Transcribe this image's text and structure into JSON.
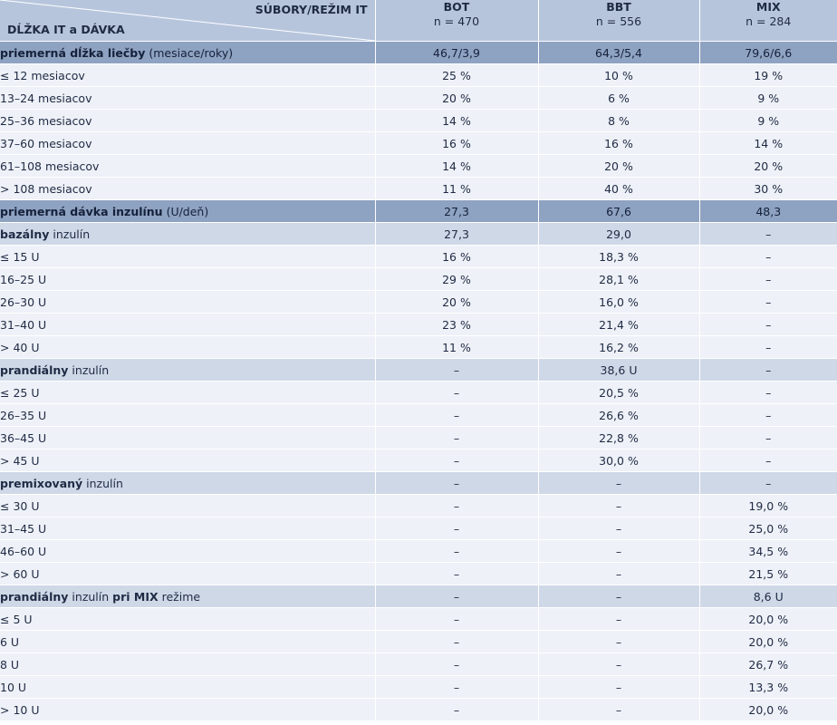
{
  "header": {
    "corner_top": "SÚBORY/REŽIM IT",
    "corner_bottom": "DĹŽKA IT a DÁVKA",
    "columns": [
      {
        "name": "BOT",
        "n": "n = 470"
      },
      {
        "name": "BBT",
        "n": "n = 556"
      },
      {
        "name": "MIX",
        "n": "n = 284"
      }
    ]
  },
  "colors": {
    "header_bg": "#b7c5dc",
    "main_section": "#8ea2c2",
    "sub_section": "#cfd8e7",
    "row_bg": "#eef1f7"
  },
  "rows": [
    {
      "type": "m",
      "label": [
        {
          "t": "priemerná dĺžka liečby",
          "b": true
        },
        {
          "t": " (mesiace/roky)",
          "b": false
        }
      ],
      "values": [
        "46,7/3,9",
        "64,3/5,4",
        "79,6/6,6"
      ]
    },
    {
      "type": "l",
      "label": [
        {
          "t": "≤ 12 mesiacov",
          "b": false
        }
      ],
      "values": [
        "25 %",
        "10 %",
        "19 %"
      ]
    },
    {
      "type": "l",
      "label": [
        {
          "t": "13–24 mesiacov",
          "b": false
        }
      ],
      "values": [
        "20 %",
        "6 %",
        "9 %"
      ]
    },
    {
      "type": "l",
      "label": [
        {
          "t": "25–36 mesiacov",
          "b": false
        }
      ],
      "values": [
        "14 %",
        "8 %",
        "9 %"
      ]
    },
    {
      "type": "l",
      "label": [
        {
          "t": "37–60 mesiacov",
          "b": false
        }
      ],
      "values": [
        "16 %",
        "16 %",
        "14 %"
      ]
    },
    {
      "type": "l",
      "label": [
        {
          "t": "61–108 mesiacov",
          "b": false
        }
      ],
      "values": [
        "14 %",
        "20 %",
        "20 %"
      ]
    },
    {
      "type": "l",
      "label": [
        {
          "t": "> 108 mesiacov",
          "b": false
        }
      ],
      "values": [
        "11 %",
        "40 %",
        "30 %"
      ]
    },
    {
      "type": "m",
      "label": [
        {
          "t": "priemerná dávka inzulínu",
          "b": true
        },
        {
          "t": " (U/deň)",
          "b": false
        }
      ],
      "values": [
        "27,3",
        "67,6",
        "48,3"
      ]
    },
    {
      "type": "s",
      "label": [
        {
          "t": "bazálny",
          "b": true
        },
        {
          "t": " inzulín",
          "b": false
        }
      ],
      "values": [
        "27,3",
        "29,0",
        "–"
      ]
    },
    {
      "type": "l",
      "label": [
        {
          "t": "≤ 15 U",
          "b": false
        }
      ],
      "values": [
        "16 %",
        "18,3 %",
        "–"
      ]
    },
    {
      "type": "l",
      "label": [
        {
          "t": "16–25 U",
          "b": false
        }
      ],
      "values": [
        "29 %",
        "28,1 %",
        "–"
      ]
    },
    {
      "type": "l",
      "label": [
        {
          "t": "26–30 U",
          "b": false
        }
      ],
      "values": [
        "20 %",
        "16,0 %",
        "–"
      ]
    },
    {
      "type": "l",
      "label": [
        {
          "t": "31–40 U",
          "b": false
        }
      ],
      "values": [
        "23 %",
        "21,4 %",
        "–"
      ]
    },
    {
      "type": "l",
      "label": [
        {
          "t": "> 40 U",
          "b": false
        }
      ],
      "values": [
        "11 %",
        "16,2 %",
        "–"
      ]
    },
    {
      "type": "s",
      "label": [
        {
          "t": "prandiálny",
          "b": true
        },
        {
          "t": " inzulín",
          "b": false
        }
      ],
      "values": [
        "–",
        "38,6 U",
        "–"
      ]
    },
    {
      "type": "l",
      "label": [
        {
          "t": "≤ 25 U",
          "b": false
        }
      ],
      "values": [
        "–",
        "20,5 %",
        "–"
      ]
    },
    {
      "type": "l",
      "label": [
        {
          "t": "26–35 U",
          "b": false
        }
      ],
      "values": [
        "–",
        "26,6 %",
        "–"
      ]
    },
    {
      "type": "l",
      "label": [
        {
          "t": "36–45 U",
          "b": false
        }
      ],
      "values": [
        "–",
        "22,8 %",
        "–"
      ]
    },
    {
      "type": "l",
      "label": [
        {
          "t": "> 45 U",
          "b": false
        }
      ],
      "values": [
        "–",
        "30,0 %",
        "–"
      ]
    },
    {
      "type": "s",
      "label": [
        {
          "t": "premixovaný",
          "b": true
        },
        {
          "t": " inzulín",
          "b": false
        }
      ],
      "values": [
        "–",
        "–",
        "–"
      ]
    },
    {
      "type": "l",
      "label": [
        {
          "t": "≤ 30 U",
          "b": false
        }
      ],
      "values": [
        "–",
        "–",
        "19,0 %"
      ]
    },
    {
      "type": "l",
      "label": [
        {
          "t": "31–45 U",
          "b": false
        }
      ],
      "values": [
        "–",
        "–",
        "25,0 %"
      ]
    },
    {
      "type": "l",
      "label": [
        {
          "t": "46–60 U",
          "b": false
        }
      ],
      "values": [
        "–",
        "–",
        "34,5 %"
      ]
    },
    {
      "type": "l",
      "label": [
        {
          "t": "> 60 U",
          "b": false
        }
      ],
      "values": [
        "–",
        "–",
        "21,5 %"
      ]
    },
    {
      "type": "s",
      "label": [
        {
          "t": "prandiálny",
          "b": true
        },
        {
          "t": " inzulín ",
          "b": false
        },
        {
          "t": "pri MIX",
          "b": true
        },
        {
          "t": " režime",
          "b": false
        }
      ],
      "values": [
        "–",
        "–",
        "8,6 U"
      ]
    },
    {
      "type": "l",
      "label": [
        {
          "t": "≤ 5 U",
          "b": false
        }
      ],
      "values": [
        "–",
        "–",
        "20,0 %"
      ]
    },
    {
      "type": "l",
      "label": [
        {
          "t": "6 U",
          "b": false
        }
      ],
      "values": [
        "–",
        "–",
        "20,0 %"
      ]
    },
    {
      "type": "l",
      "label": [
        {
          "t": "8 U",
          "b": false
        }
      ],
      "values": [
        "–",
        "–",
        "26,7 %"
      ]
    },
    {
      "type": "l",
      "label": [
        {
          "t": "10 U",
          "b": false
        }
      ],
      "values": [
        "–",
        "–",
        "13,3 %"
      ]
    },
    {
      "type": "l",
      "label": [
        {
          "t": "> 10 U",
          "b": false
        }
      ],
      "values": [
        "–",
        "–",
        "20,0 %"
      ]
    }
  ]
}
